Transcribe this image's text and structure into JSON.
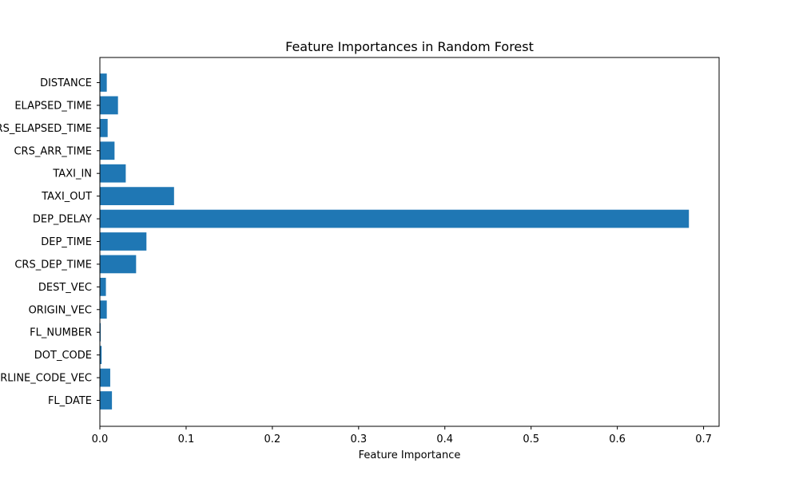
{
  "chart_data": {
    "type": "bar",
    "orientation": "horizontal",
    "title": "Feature Importances in Random Forest",
    "xlabel": "Feature Importance",
    "ylabel": "",
    "xlim": [
      0,
      0.718
    ],
    "xticks": [
      0.0,
      0.1,
      0.2,
      0.3,
      0.4,
      0.5,
      0.6,
      0.7
    ],
    "xtick_labels": [
      "0.0",
      "0.1",
      "0.2",
      "0.3",
      "0.4",
      "0.5",
      "0.6",
      "0.7"
    ],
    "grid": false,
    "bar_color": "#1f77b4",
    "categories": [
      "FL_DATE",
      "AIRLINE_CODE_VEC",
      "DOT_CODE",
      "FL_NUMBER",
      "ORIGIN_VEC",
      "DEST_VEC",
      "CRS_DEP_TIME",
      "DEP_TIME",
      "DEP_DELAY",
      "TAXI_OUT",
      "TAXI_IN",
      "CRS_ARR_TIME",
      "CRS_ELAPSED_TIME",
      "ELAPSED_TIME",
      "DISTANCE"
    ],
    "values": [
      0.014,
      0.012,
      0.002,
      0.001,
      0.008,
      0.007,
      0.042,
      0.054,
      0.683,
      0.086,
      0.03,
      0.017,
      0.009,
      0.021,
      0.008
    ]
  }
}
